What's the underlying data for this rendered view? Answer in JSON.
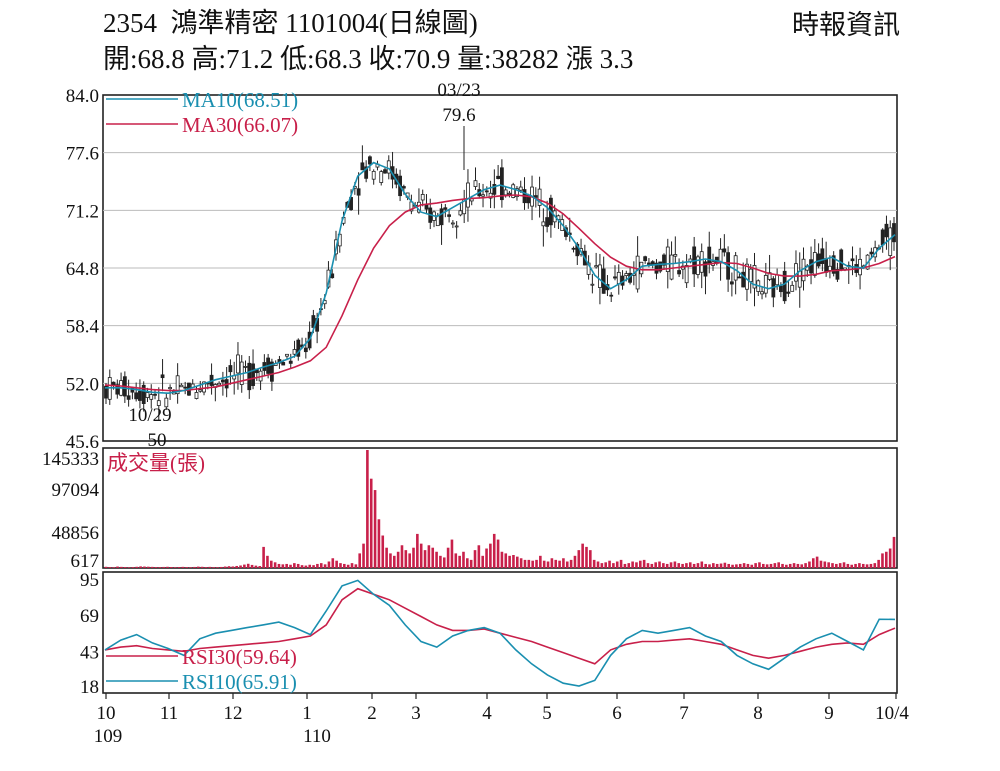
{
  "header": {
    "code": "2354",
    "name": "鴻準精密",
    "date": "1101004",
    "period": "(日線圖)",
    "source": "時報資訊",
    "open_label": "開:",
    "open": "68.8",
    "high_label": "高:",
    "high": "71.2",
    "low_label": "低:",
    "low": "68.3",
    "close_label": "收:",
    "close": "70.9",
    "volume_label": "量:",
    "volume": "38282",
    "change_label": "漲",
    "change": "3.3"
  },
  "colors": {
    "ma10": "#1a8fb0",
    "ma30": "#c8204a",
    "volume": "#c8204a",
    "rsi30": "#c8204a",
    "rsi10": "#1a8fb0",
    "candle": "#222222"
  },
  "chart_data": [
    {
      "type": "line",
      "panel": "price",
      "ylim": [
        45.6,
        84.0
      ],
      "y_ticks": [
        "84.0",
        "77.6",
        "71.2",
        "64.8",
        "58.4",
        "52.0",
        "45.6"
      ],
      "x_ticks": [
        "10",
        "11",
        "12",
        "1",
        "2",
        "3",
        "4",
        "5",
        "6",
        "7",
        "8",
        "9",
        "10/4"
      ],
      "x_year_labels": [
        "109",
        "110"
      ],
      "ohlc_last": {
        "open": 68.8,
        "high": 71.2,
        "low": 68.3,
        "close": 70.9
      },
      "series": [
        {
          "name": "MA10(68.51)",
          "values": [
            51.5,
            51.5,
            51.3,
            51.0,
            50.9,
            51.2,
            51.8,
            52.4,
            52.8,
            53.2,
            53.8,
            54.3,
            55.0,
            57.0,
            62.0,
            70.0,
            75.0,
            76.5,
            75.8,
            73.0,
            71.0,
            70.5,
            71.5,
            72.5,
            73.5,
            74.0,
            73.5,
            72.8,
            71.5,
            69.5,
            67.0,
            64.0,
            62.5,
            63.5,
            65.0,
            65.2,
            65.3,
            65.5,
            65.8,
            65.5,
            64.5,
            63.0,
            62.5,
            63.0,
            64.5,
            65.5,
            66.0,
            65.0,
            64.8,
            67.0,
            68.51
          ]
        },
        {
          "name": "MA30(66.07)",
          "values": [
            51.8,
            51.7,
            51.5,
            51.3,
            51.2,
            51.2,
            51.4,
            51.6,
            52.0,
            52.4,
            52.8,
            53.2,
            53.8,
            54.5,
            56.0,
            59.5,
            63.5,
            67.0,
            69.5,
            71.0,
            71.8,
            72.0,
            72.3,
            72.5,
            72.6,
            72.8,
            72.9,
            72.7,
            72.0,
            70.8,
            69.2,
            67.5,
            66.0,
            65.0,
            64.6,
            64.6,
            64.8,
            65.0,
            65.2,
            65.4,
            65.3,
            64.8,
            64.2,
            63.9,
            63.9,
            64.1,
            64.5,
            64.6,
            64.8,
            65.3,
            66.07
          ]
        }
      ],
      "annotations": [
        {
          "date": "03/23",
          "value": "79.6"
        },
        {
          "date": "10/29",
          "value": "50"
        }
      ]
    },
    {
      "type": "bar",
      "panel": "volume",
      "title": "成交量(張)",
      "y_ticks": [
        "145333",
        "97094",
        "48856",
        "617"
      ],
      "ylim": [
        0,
        145333
      ],
      "values": [
        1500,
        1200,
        1000,
        1800,
        1400,
        1200,
        900,
        1100,
        1500,
        2000,
        1800,
        1600,
        1400,
        1200,
        1100,
        1300,
        1500,
        1200,
        1000,
        1200,
        1400,
        1100,
        900,
        1300,
        1700,
        1500,
        1200,
        1400,
        1100,
        1000,
        1300,
        1800,
        2200,
        1900,
        2500,
        3100,
        4200,
        5200,
        3800,
        2900,
        2400,
        26000,
        15000,
        9000,
        7000,
        5000,
        4500,
        5000,
        4000,
        6000,
        5000,
        3500,
        3000,
        4000,
        3500,
        5000,
        6000,
        4500,
        8000,
        12000,
        9000,
        6000,
        5000,
        4000,
        6000,
        4500,
        18000,
        30000,
        145333,
        110000,
        96000,
        60000,
        40000,
        25000,
        18000,
        15000,
        20000,
        28000,
        22000,
        18000,
        25000,
        42000,
        30000,
        22000,
        28000,
        25000,
        20000,
        15000,
        13000,
        25000,
        35000,
        18000,
        15000,
        20000,
        12000,
        10000,
        22000,
        28000,
        15000,
        24000,
        30000,
        42000,
        35000,
        20000,
        18000,
        15000,
        16000,
        14000,
        12000,
        10000,
        10000,
        9000,
        10000,
        15000,
        9000,
        8000,
        12000,
        10000,
        9000,
        12000,
        8000,
        10000,
        15000,
        22000,
        30000,
        26000,
        22000,
        10000,
        8000,
        6000,
        7000,
        9000,
        6000,
        8000,
        10000,
        5000,
        6000,
        8000,
        7000,
        9000,
        10000,
        6000,
        5000,
        7000,
        8000,
        6000,
        5000,
        7000,
        8000,
        6000,
        5000,
        6000,
        7000,
        5000,
        6000,
        8000,
        5000,
        4500,
        6000,
        5000,
        5500,
        6500,
        5000,
        4000,
        4500,
        5000,
        6000,
        5000,
        4000,
        6000,
        7000,
        5000,
        4500,
        5000,
        6000,
        7000,
        5000,
        4000,
        5000,
        6000,
        5000,
        4500,
        6000,
        8000,
        12000,
        14000,
        9000,
        8000,
        7000,
        6000,
        5000,
        6000,
        7000,
        5000,
        4000,
        5000,
        6000,
        5000,
        4500,
        5000,
        6000,
        10000,
        18000,
        20000,
        24000,
        38282
      ]
    },
    {
      "type": "line",
      "panel": "rsi",
      "ylim": [
        18,
        95
      ],
      "y_ticks": [
        "95",
        "69",
        "43",
        "18"
      ],
      "series": [
        {
          "name": "RSI30(59.64)",
          "values": [
            44,
            46,
            47,
            45,
            44,
            43,
            45,
            46,
            47,
            48,
            49,
            50,
            52,
            54,
            62,
            80,
            88,
            84,
            80,
            74,
            68,
            62,
            58,
            58,
            59,
            56,
            53,
            50,
            46,
            42,
            38,
            34,
            44,
            48,
            50,
            50,
            51,
            52,
            50,
            48,
            44,
            40,
            38,
            40,
            43,
            46,
            48,
            49,
            48,
            55,
            59.64
          ]
        },
        {
          "name": "RSI10(65.91)",
          "values": [
            44,
            51,
            55,
            49,
            45,
            40,
            52,
            56,
            58,
            60,
            62,
            64,
            60,
            55,
            72,
            90,
            94,
            84,
            76,
            62,
            50,
            46,
            54,
            58,
            60,
            56,
            44,
            34,
            26,
            20,
            18,
            22,
            40,
            52,
            58,
            56,
            58,
            60,
            54,
            50,
            40,
            34,
            30,
            38,
            46,
            52,
            56,
            50,
            44,
            66,
            65.91
          ]
        }
      ]
    }
  ]
}
